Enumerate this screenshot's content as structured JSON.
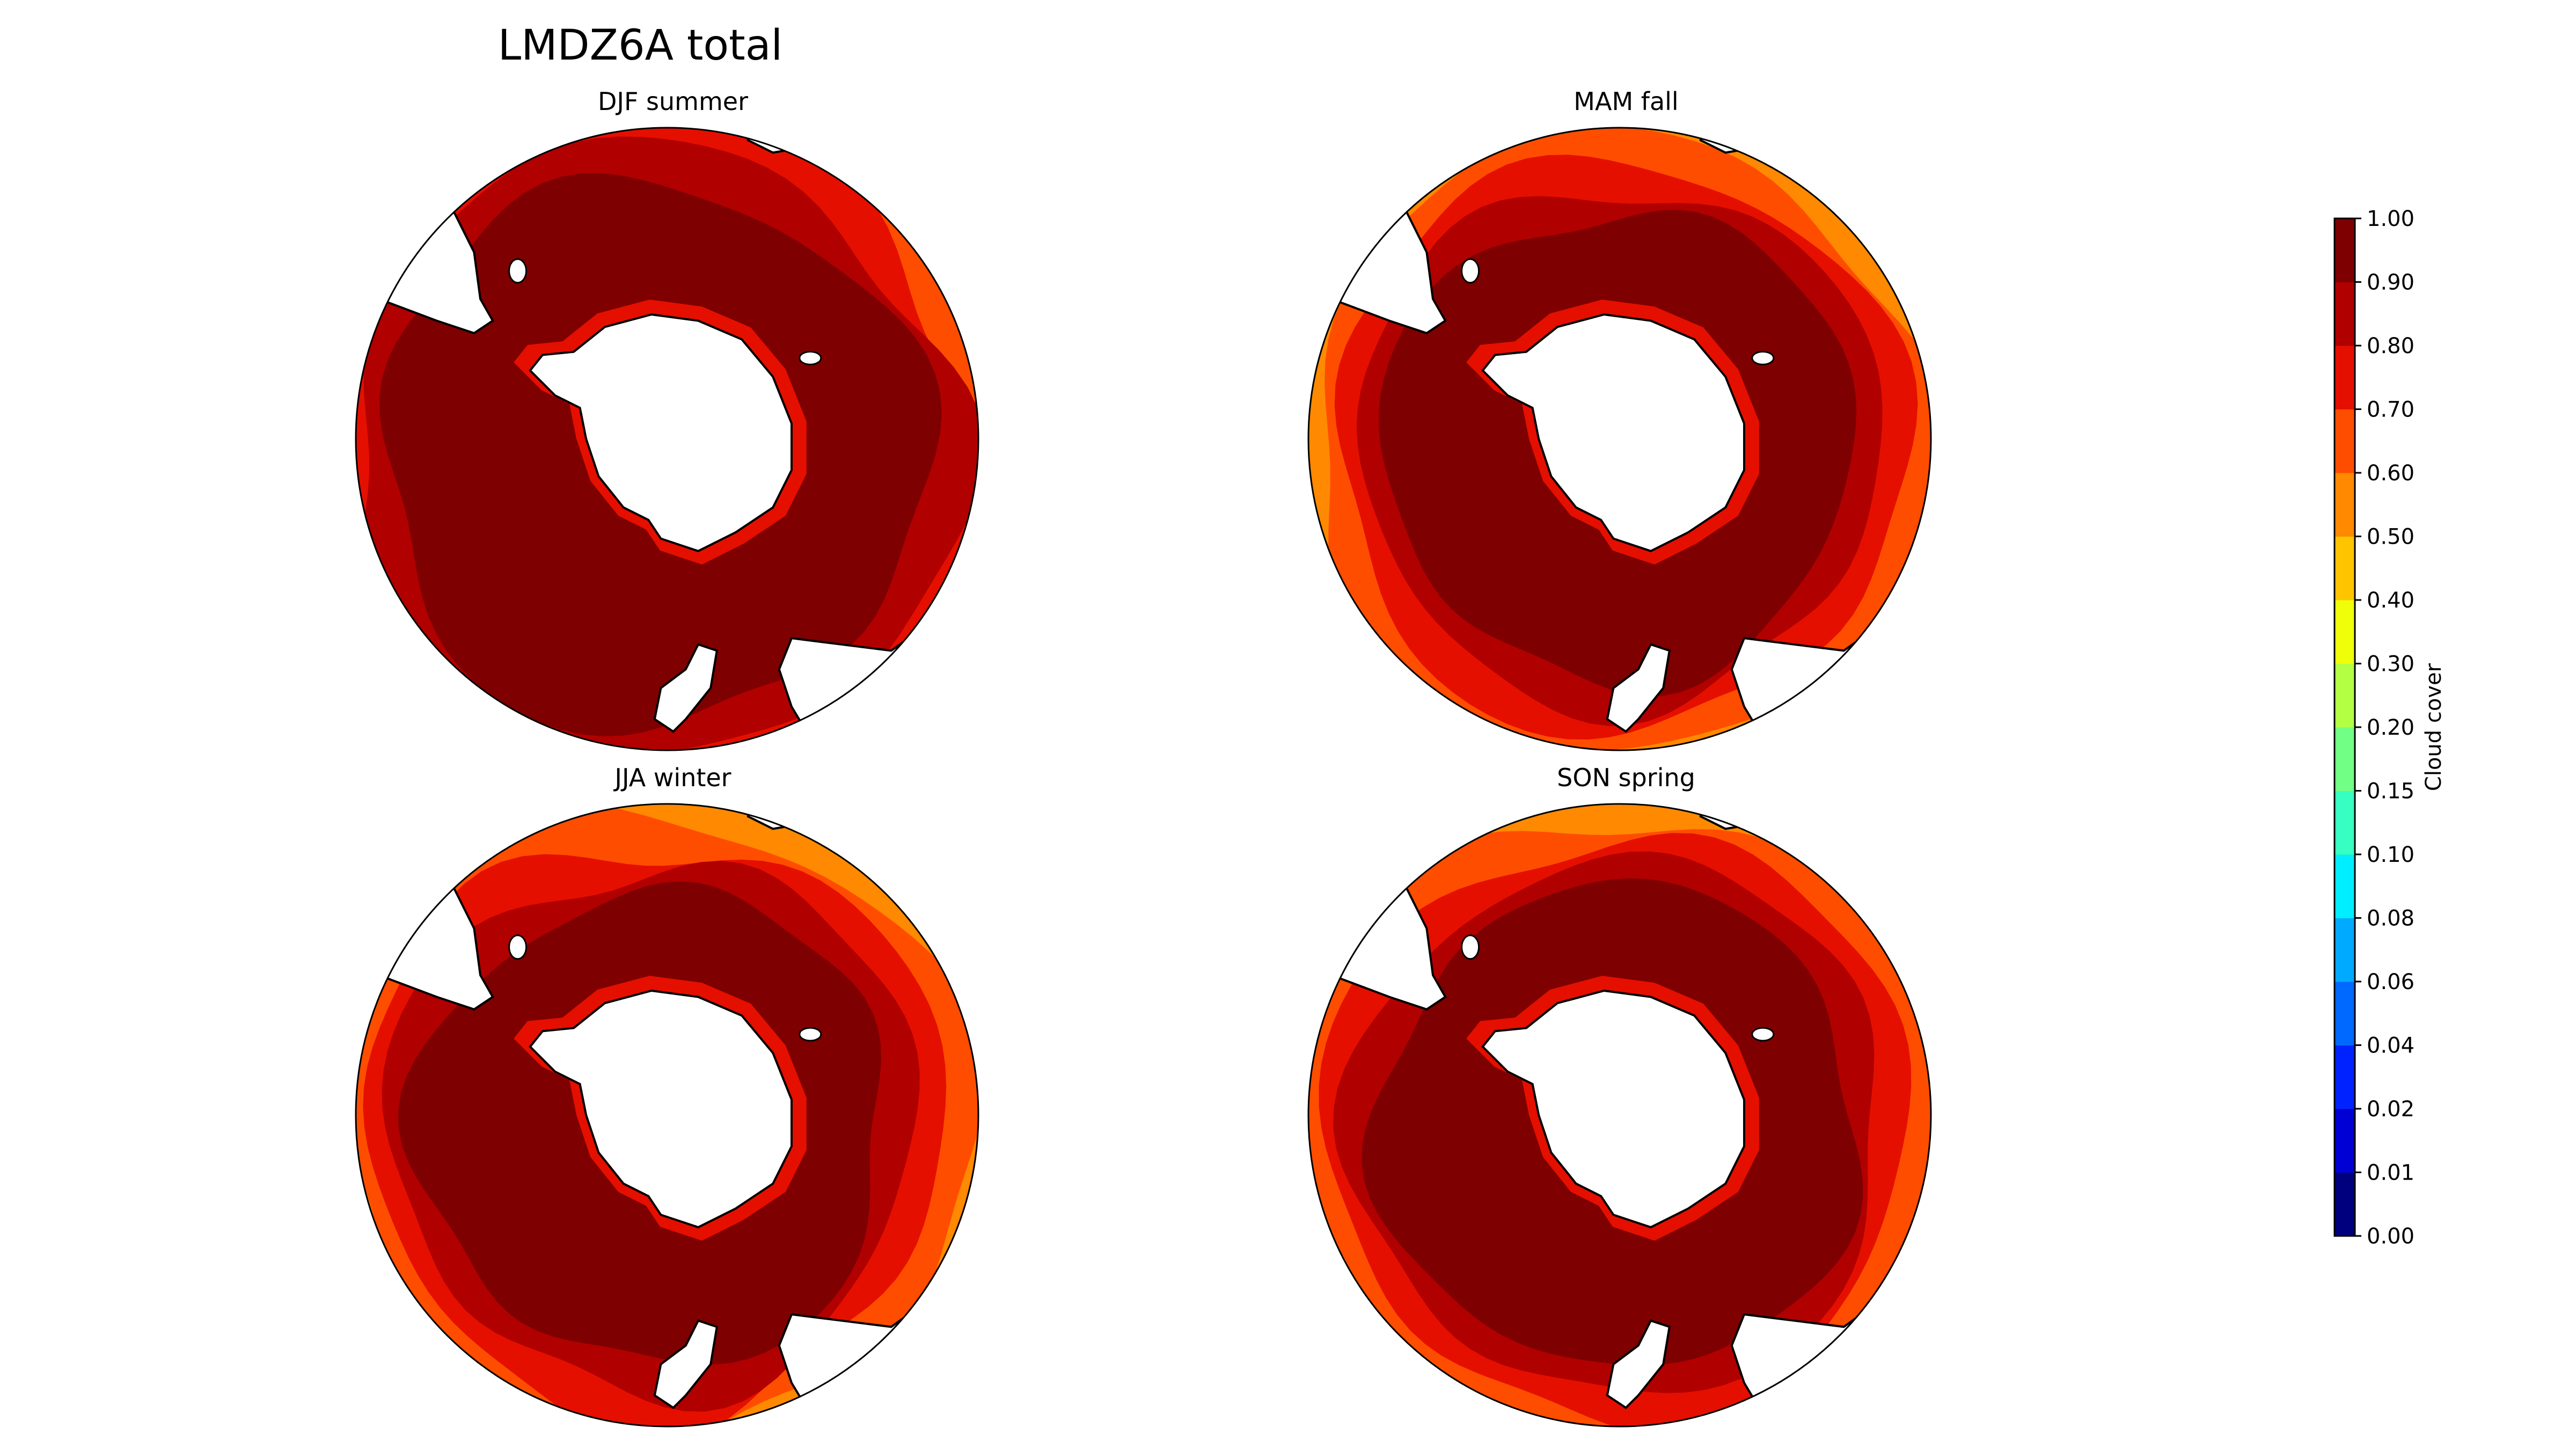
{
  "figure": {
    "title": "LMDZ6A total"
  },
  "panels": [
    {
      "id": "djf",
      "title": "DJF summer"
    },
    {
      "id": "mam",
      "title": "MAM fall"
    },
    {
      "id": "jja",
      "title": "JJA winter"
    },
    {
      "id": "son",
      "title": "SON spring"
    }
  ],
  "colorbar": {
    "label": "Cloud cover",
    "ticks": [
      "0.00",
      "0.01",
      "0.02",
      "0.04",
      "0.06",
      "0.08",
      "0.10",
      "0.15",
      "0.20",
      "0.30",
      "0.40",
      "0.50",
      "0.60",
      "0.70",
      "0.80",
      "0.90",
      "1.00"
    ],
    "colors": [
      "#00007f",
      "#0000d4",
      "#0022ff",
      "#0069ff",
      "#00aaff",
      "#00eeff",
      "#36ffc1",
      "#71ff85",
      "#b3ff44",
      "#eeff09",
      "#ffc400",
      "#ff8900",
      "#ff4d00",
      "#e50f00",
      "#b10000",
      "#7f0000"
    ]
  },
  "chart_data": {
    "type": "heatmap",
    "projection": "south-polar stereographic",
    "variable": "Cloud cover",
    "colorbar_levels": [
      0.0,
      0.01,
      0.02,
      0.04,
      0.06,
      0.08,
      0.1,
      0.15,
      0.2,
      0.3,
      0.4,
      0.5,
      0.6,
      0.7,
      0.8,
      0.9,
      1.0
    ],
    "panels": [
      "DJF summer",
      "MAM fall",
      "JJA winter",
      "SON spring"
    ],
    "observed_range": [
      0.3,
      1.0
    ]
  }
}
